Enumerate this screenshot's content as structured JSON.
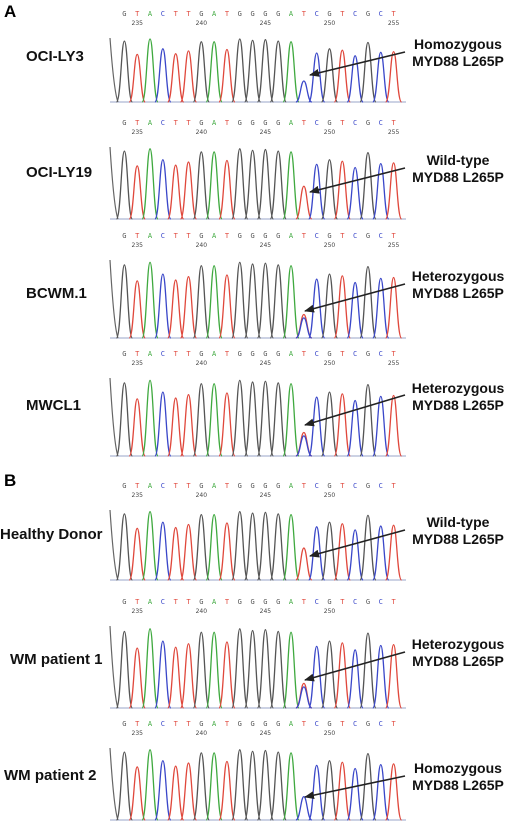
{
  "panels": [
    {
      "letter": "A"
    },
    {
      "letter": "B"
    }
  ],
  "base_labels": [
    "G",
    "T",
    "A",
    "C",
    "T",
    "T",
    "G",
    "A",
    "T",
    "G",
    "G",
    "G",
    "G",
    "A",
    "T",
    "C",
    "G",
    "T",
    "C",
    "G",
    "C",
    "T"
  ],
  "samples": [
    {
      "name": "OCI-LY3",
      "status": "Homozygous",
      "mutation": "MYD88 L265P",
      "positions": [
        "235",
        "240",
        "245",
        "250",
        "255"
      ]
    },
    {
      "name": "OCI-LY19",
      "status": "Wild-type",
      "mutation": "MYD88 L265P",
      "positions": [
        "235",
        "240",
        "245",
        "250",
        "255"
      ]
    },
    {
      "name": "BCWM.1",
      "status": "Heterozygous",
      "mutation": "MYD88 L265P",
      "positions": [
        "235",
        "240",
        "245",
        "250",
        "255"
      ]
    },
    {
      "name": "MWCL1",
      "status": "Heterozygous",
      "mutation": "MYD88 L265P",
      "positions": [
        "235",
        "240",
        "245",
        "250",
        "255"
      ]
    },
    {
      "name": "Healthy Donor",
      "status": "Wild-type",
      "mutation": "MYD88 L265P",
      "positions": [
        "235",
        "240",
        "245",
        "250"
      ]
    },
    {
      "name": "WM patient 1",
      "status": "Heterozygous",
      "mutation": "MYD88 L265P",
      "positions": [
        "235",
        "240",
        "245",
        "250"
      ]
    },
    {
      "name": "WM patient 2",
      "status": "Homozygous",
      "mutation": "MYD88 L265P",
      "positions": [
        "235",
        "240",
        "245",
        "250"
      ]
    }
  ],
  "colors": {
    "G": "#555555",
    "T": "#e0483c",
    "A": "#3fa93f",
    "C": "#3a47c9"
  }
}
